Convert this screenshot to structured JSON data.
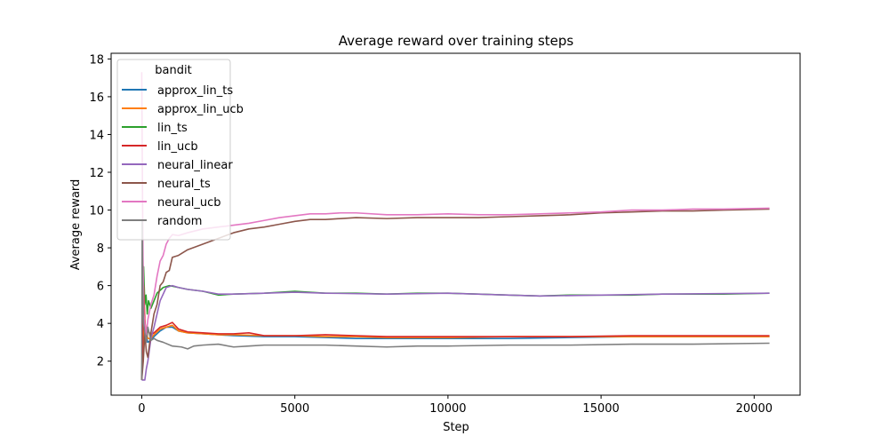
{
  "chart_data": {
    "type": "line",
    "title": "Average reward over training steps",
    "xlabel": "Step",
    "ylabel": "Average reward",
    "xlim": [
      -1000,
      21500
    ],
    "ylim": [
      0.2,
      18.3
    ],
    "xticks": [
      0,
      5000,
      10000,
      15000,
      20000
    ],
    "yticks": [
      2,
      4,
      6,
      8,
      10,
      12,
      14,
      16,
      18
    ],
    "grid": false,
    "legend": {
      "title": "bandit",
      "position": "top-left"
    },
    "series": [
      {
        "name": "approx_lin_ts",
        "color": "#1f77b4",
        "points": [
          [
            0,
            1.0
          ],
          [
            40,
            2.5
          ],
          [
            80,
            4.3
          ],
          [
            120,
            3.5
          ],
          [
            200,
            3.0
          ],
          [
            300,
            3.1
          ],
          [
            400,
            3.3
          ],
          [
            600,
            3.6
          ],
          [
            800,
            3.8
          ],
          [
            1000,
            3.8
          ],
          [
            1200,
            3.6
          ],
          [
            1500,
            3.5
          ],
          [
            2000,
            3.45
          ],
          [
            2500,
            3.4
          ],
          [
            3000,
            3.35
          ],
          [
            4000,
            3.3
          ],
          [
            5000,
            3.3
          ],
          [
            6000,
            3.25
          ],
          [
            7000,
            3.2
          ],
          [
            8000,
            3.2
          ],
          [
            10000,
            3.2
          ],
          [
            12000,
            3.2
          ],
          [
            14000,
            3.25
          ],
          [
            16000,
            3.3
          ],
          [
            18000,
            3.3
          ],
          [
            20500,
            3.3
          ]
        ]
      },
      {
        "name": "approx_lin_ucb",
        "color": "#ff7f0e",
        "points": [
          [
            0,
            1.0
          ],
          [
            40,
            3.0
          ],
          [
            80,
            4.5
          ],
          [
            120,
            3.8
          ],
          [
            200,
            3.2
          ],
          [
            300,
            3.2
          ],
          [
            400,
            3.4
          ],
          [
            600,
            3.7
          ],
          [
            800,
            3.8
          ],
          [
            1000,
            3.9
          ],
          [
            1200,
            3.6
          ],
          [
            1500,
            3.5
          ],
          [
            2000,
            3.45
          ],
          [
            2500,
            3.4
          ],
          [
            3000,
            3.4
          ],
          [
            4000,
            3.35
          ],
          [
            5000,
            3.35
          ],
          [
            6000,
            3.3
          ],
          [
            7000,
            3.3
          ],
          [
            8000,
            3.25
          ],
          [
            10000,
            3.25
          ],
          [
            12000,
            3.3
          ],
          [
            14000,
            3.3
          ],
          [
            16000,
            3.3
          ],
          [
            18000,
            3.3
          ],
          [
            20500,
            3.3
          ]
        ]
      },
      {
        "name": "lin_ts",
        "color": "#2ca02c",
        "points": [
          [
            0,
            1.0
          ],
          [
            30,
            4.0
          ],
          [
            60,
            7.0
          ],
          [
            100,
            5.0
          ],
          [
            140,
            5.5
          ],
          [
            180,
            4.5
          ],
          [
            220,
            5.2
          ],
          [
            300,
            4.8
          ],
          [
            400,
            5.2
          ],
          [
            500,
            5.6
          ],
          [
            700,
            5.9
          ],
          [
            900,
            6.0
          ],
          [
            1200,
            5.9
          ],
          [
            1500,
            5.8
          ],
          [
            2000,
            5.7
          ],
          [
            2500,
            5.5
          ],
          [
            3000,
            5.55
          ],
          [
            4000,
            5.6
          ],
          [
            5000,
            5.7
          ],
          [
            6000,
            5.6
          ],
          [
            7000,
            5.6
          ],
          [
            8000,
            5.55
          ],
          [
            9000,
            5.6
          ],
          [
            10000,
            5.6
          ],
          [
            11000,
            5.55
          ],
          [
            12000,
            5.5
          ],
          [
            13000,
            5.45
          ],
          [
            14000,
            5.5
          ],
          [
            15000,
            5.5
          ],
          [
            16000,
            5.5
          ],
          [
            17000,
            5.55
          ],
          [
            18000,
            5.55
          ],
          [
            19000,
            5.55
          ],
          [
            20500,
            5.6
          ]
        ]
      },
      {
        "name": "lin_ucb",
        "color": "#d62728",
        "points": [
          [
            0,
            1.0
          ],
          [
            30,
            3.0
          ],
          [
            60,
            6.0
          ],
          [
            100,
            4.2
          ],
          [
            150,
            3.2
          ],
          [
            200,
            3.6
          ],
          [
            300,
            3.4
          ],
          [
            400,
            3.5
          ],
          [
            600,
            3.8
          ],
          [
            800,
            3.9
          ],
          [
            1000,
            4.05
          ],
          [
            1200,
            3.7
          ],
          [
            1500,
            3.55
          ],
          [
            2000,
            3.5
          ],
          [
            2500,
            3.45
          ],
          [
            3000,
            3.45
          ],
          [
            3500,
            3.5
          ],
          [
            4000,
            3.35
          ],
          [
            5000,
            3.35
          ],
          [
            6000,
            3.4
          ],
          [
            7000,
            3.35
          ],
          [
            8000,
            3.3
          ],
          [
            10000,
            3.3
          ],
          [
            12000,
            3.3
          ],
          [
            14000,
            3.3
          ],
          [
            16000,
            3.35
          ],
          [
            18000,
            3.35
          ],
          [
            20500,
            3.35
          ]
        ]
      },
      {
        "name": "neural_linear",
        "color": "#9467bd",
        "points": [
          [
            0,
            1.0
          ],
          [
            100,
            1.0
          ],
          [
            150,
            1.6
          ],
          [
            200,
            2.0
          ],
          [
            300,
            3.2
          ],
          [
            400,
            3.8
          ],
          [
            500,
            4.5
          ],
          [
            600,
            5.2
          ],
          [
            800,
            5.9
          ],
          [
            1000,
            6.0
          ],
          [
            1200,
            5.9
          ],
          [
            1500,
            5.8
          ],
          [
            2000,
            5.7
          ],
          [
            2500,
            5.55
          ],
          [
            3000,
            5.55
          ],
          [
            4000,
            5.6
          ],
          [
            5000,
            5.65
          ],
          [
            6000,
            5.6
          ],
          [
            8000,
            5.55
          ],
          [
            10000,
            5.6
          ],
          [
            12000,
            5.5
          ],
          [
            13000,
            5.45
          ],
          [
            15000,
            5.5
          ],
          [
            17000,
            5.55
          ],
          [
            20500,
            5.6
          ]
        ]
      },
      {
        "name": "neural_ts",
        "color": "#8c564b",
        "points": [
          [
            0,
            1.0
          ],
          [
            50,
            2.0
          ],
          [
            100,
            3.5
          ],
          [
            150,
            2.5
          ],
          [
            200,
            2.2
          ],
          [
            300,
            3.5
          ],
          [
            400,
            4.5
          ],
          [
            500,
            5.0
          ],
          [
            600,
            6.0
          ],
          [
            700,
            6.2
          ],
          [
            800,
            6.7
          ],
          [
            900,
            6.8
          ],
          [
            1000,
            7.5
          ],
          [
            1200,
            7.6
          ],
          [
            1500,
            7.9
          ],
          [
            2000,
            8.2
          ],
          [
            2500,
            8.5
          ],
          [
            3000,
            8.8
          ],
          [
            3500,
            9.0
          ],
          [
            4000,
            9.1
          ],
          [
            4500,
            9.25
          ],
          [
            5000,
            9.4
          ],
          [
            5500,
            9.5
          ],
          [
            6000,
            9.5
          ],
          [
            7000,
            9.6
          ],
          [
            8000,
            9.55
          ],
          [
            9000,
            9.6
          ],
          [
            10000,
            9.6
          ],
          [
            11000,
            9.6
          ],
          [
            12000,
            9.65
          ],
          [
            13000,
            9.7
          ],
          [
            14000,
            9.75
          ],
          [
            15000,
            9.85
          ],
          [
            16000,
            9.9
          ],
          [
            17000,
            9.95
          ],
          [
            18000,
            9.95
          ],
          [
            19000,
            10.0
          ],
          [
            20500,
            10.05
          ]
        ]
      },
      {
        "name": "neural_ucb",
        "color": "#e377c2",
        "points": [
          [
            0,
            17.3
          ],
          [
            20,
            12.0
          ],
          [
            40,
            7.5
          ],
          [
            70,
            4.5
          ],
          [
            100,
            4.0
          ],
          [
            150,
            3.4
          ],
          [
            200,
            4.2
          ],
          [
            300,
            5.0
          ],
          [
            400,
            5.5
          ],
          [
            500,
            6.5
          ],
          [
            600,
            7.3
          ],
          [
            700,
            7.6
          ],
          [
            800,
            8.2
          ],
          [
            900,
            8.5
          ],
          [
            1000,
            8.7
          ],
          [
            1200,
            8.65
          ],
          [
            1500,
            8.8
          ],
          [
            2000,
            9.0
          ],
          [
            2500,
            9.1
          ],
          [
            3000,
            9.2
          ],
          [
            3500,
            9.3
          ],
          [
            4000,
            9.45
          ],
          [
            4500,
            9.6
          ],
          [
            5000,
            9.7
          ],
          [
            5500,
            9.8
          ],
          [
            6000,
            9.8
          ],
          [
            6500,
            9.85
          ],
          [
            7000,
            9.85
          ],
          [
            8000,
            9.75
          ],
          [
            9000,
            9.75
          ],
          [
            10000,
            9.8
          ],
          [
            11000,
            9.75
          ],
          [
            12000,
            9.75
          ],
          [
            13000,
            9.8
          ],
          [
            14000,
            9.85
          ],
          [
            15000,
            9.9
          ],
          [
            16000,
            10.0
          ],
          [
            17000,
            10.0
          ],
          [
            18000,
            10.05
          ],
          [
            19000,
            10.05
          ],
          [
            20500,
            10.1
          ]
        ]
      },
      {
        "name": "random",
        "color": "#7f7f7f",
        "points": [
          [
            0,
            1.0
          ],
          [
            15,
            9.5
          ],
          [
            30,
            6.0
          ],
          [
            60,
            4.0
          ],
          [
            100,
            3.5
          ],
          [
            150,
            3.0
          ],
          [
            200,
            3.8
          ],
          [
            300,
            3.1
          ],
          [
            400,
            3.2
          ],
          [
            500,
            3.1
          ],
          [
            700,
            3.0
          ],
          [
            1000,
            2.8
          ],
          [
            1300,
            2.75
          ],
          [
            1500,
            2.65
          ],
          [
            1700,
            2.8
          ],
          [
            2000,
            2.85
          ],
          [
            2500,
            2.9
          ],
          [
            3000,
            2.75
          ],
          [
            3500,
            2.8
          ],
          [
            4000,
            2.85
          ],
          [
            5000,
            2.85
          ],
          [
            6000,
            2.85
          ],
          [
            7000,
            2.8
          ],
          [
            8000,
            2.75
          ],
          [
            9000,
            2.8
          ],
          [
            10000,
            2.8
          ],
          [
            12000,
            2.85
          ],
          [
            14000,
            2.85
          ],
          [
            16000,
            2.9
          ],
          [
            18000,
            2.9
          ],
          [
            20500,
            2.95
          ]
        ]
      }
    ]
  }
}
